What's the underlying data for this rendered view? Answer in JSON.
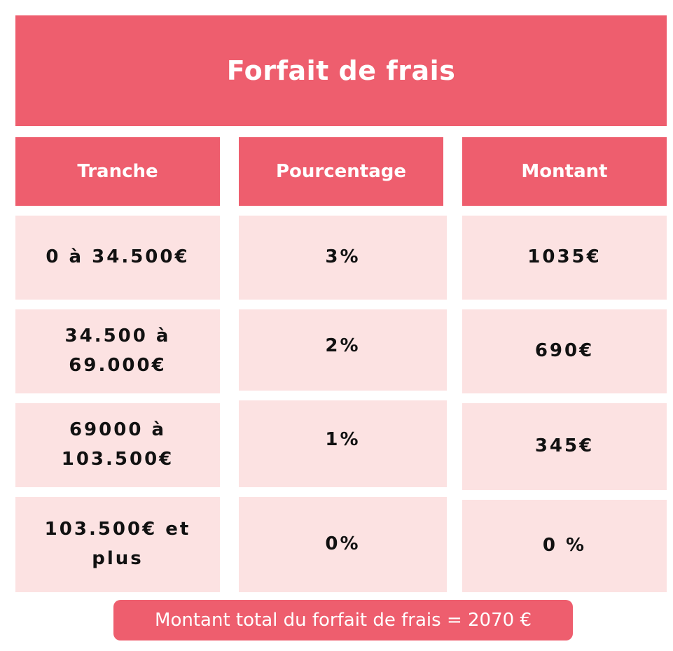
{
  "title": "Forfait de frais",
  "columns": [
    "Tranche",
    "Pourcentage",
    "Montant"
  ],
  "rows": [
    {
      "tranche": "0 à 34.500€",
      "pourcentage": "3%",
      "montant": "1035€"
    },
    {
      "tranche": "34.500 à 69.000€",
      "pourcentage": "2%",
      "montant": "690€"
    },
    {
      "tranche": "69000 à 103.500€",
      "pourcentage": "1%",
      "montant": "345€"
    },
    {
      "tranche": "103.500€ et plus",
      "pourcentage": "0%",
      "montant": "0 %"
    }
  ],
  "total": "Montant total du forfait de frais = 2070 €",
  "colors": {
    "accent": "#ee5e6e",
    "cell_bg": "#fce2e2",
    "text": "#111111"
  }
}
